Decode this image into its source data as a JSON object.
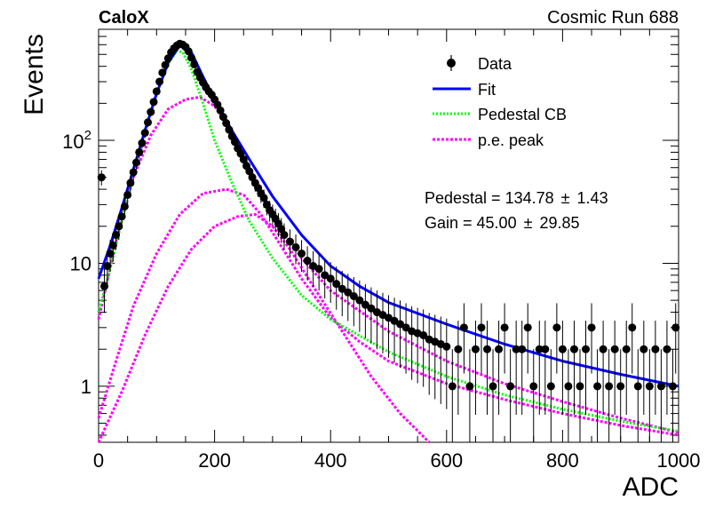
{
  "header": {
    "experiment": "CaloX",
    "run_label": "Cosmic Run 688"
  },
  "chart_data": {
    "type": "scatter",
    "xlabel": "ADC",
    "ylabel": "Events",
    "xlim": [
      0,
      1000
    ],
    "ylim": [
      0.35,
      800
    ],
    "y_scale": "log",
    "x_ticks": [
      0,
      200,
      400,
      600,
      800,
      1000
    ],
    "x_tick_labels": [
      "0",
      "200",
      "400",
      "600",
      "800",
      "1000"
    ],
    "y_ticks": [
      1,
      10,
      100
    ],
    "y_tick_labels": [
      "1",
      "10",
      "10^2"
    ],
    "grid": false,
    "legend_position": "top-right",
    "legend": [
      {
        "label": "Data",
        "kind": "marker",
        "color": "#000000"
      },
      {
        "label": "Fit",
        "kind": "line",
        "color": "#0000ff"
      },
      {
        "label": "Pedestal CB",
        "kind": "dotted",
        "color": "#00ff00"
      },
      {
        "label": "p.e. peak",
        "kind": "dotted",
        "color": "#ff00ff"
      }
    ],
    "fit_results": [
      {
        "label": "Pedestal = 134.78",
        "pm": "±",
        "error": "1.43"
      },
      {
        "label": "Gain = 45.00",
        "pm": "±",
        "error": "29.85"
      }
    ],
    "data_points": [
      {
        "x": 5,
        "y": 50
      },
      {
        "x": 10,
        "y": 6.5
      },
      {
        "x": 15,
        "y": 9.5
      },
      {
        "x": 20,
        "y": 12
      },
      {
        "x": 25,
        "y": 14
      },
      {
        "x": 30,
        "y": 17
      },
      {
        "x": 35,
        "y": 20
      },
      {
        "x": 40,
        "y": 24
      },
      {
        "x": 45,
        "y": 29
      },
      {
        "x": 50,
        "y": 36
      },
      {
        "x": 55,
        "y": 45
      },
      {
        "x": 60,
        "y": 55
      },
      {
        "x": 65,
        "y": 66
      },
      {
        "x": 70,
        "y": 80
      },
      {
        "x": 75,
        "y": 95
      },
      {
        "x": 80,
        "y": 115
      },
      {
        "x": 85,
        "y": 140
      },
      {
        "x": 90,
        "y": 170
      },
      {
        "x": 95,
        "y": 205
      },
      {
        "x": 100,
        "y": 250
      },
      {
        "x": 105,
        "y": 300
      },
      {
        "x": 110,
        "y": 355
      },
      {
        "x": 115,
        "y": 410
      },
      {
        "x": 120,
        "y": 465
      },
      {
        "x": 125,
        "y": 520
      },
      {
        "x": 130,
        "y": 560
      },
      {
        "x": 135,
        "y": 590
      },
      {
        "x": 140,
        "y": 610
      },
      {
        "x": 145,
        "y": 600
      },
      {
        "x": 150,
        "y": 575
      },
      {
        "x": 155,
        "y": 530
      },
      {
        "x": 160,
        "y": 470
      },
      {
        "x": 165,
        "y": 415
      },
      {
        "x": 170,
        "y": 360
      },
      {
        "x": 175,
        "y": 325
      },
      {
        "x": 180,
        "y": 295
      },
      {
        "x": 185,
        "y": 270
      },
      {
        "x": 190,
        "y": 250
      },
      {
        "x": 195,
        "y": 235
      },
      {
        "x": 200,
        "y": 215
      },
      {
        "x": 205,
        "y": 195
      },
      {
        "x": 210,
        "y": 175
      },
      {
        "x": 215,
        "y": 155
      },
      {
        "x": 220,
        "y": 138
      },
      {
        "x": 225,
        "y": 122
      },
      {
        "x": 230,
        "y": 108
      },
      {
        "x": 235,
        "y": 97
      },
      {
        "x": 240,
        "y": 86
      },
      {
        "x": 245,
        "y": 78
      },
      {
        "x": 250,
        "y": 70
      },
      {
        "x": 255,
        "y": 62
      },
      {
        "x": 260,
        "y": 56
      },
      {
        "x": 265,
        "y": 50
      },
      {
        "x": 270,
        "y": 45
      },
      {
        "x": 275,
        "y": 41
      },
      {
        "x": 280,
        "y": 37
      },
      {
        "x": 285,
        "y": 34
      },
      {
        "x": 290,
        "y": 30
      },
      {
        "x": 295,
        "y": 27
      },
      {
        "x": 300,
        "y": 25
      },
      {
        "x": 305,
        "y": 23
      },
      {
        "x": 310,
        "y": 21
      },
      {
        "x": 315,
        "y": 19
      },
      {
        "x": 320,
        "y": 17
      },
      {
        "x": 330,
        "y": 15
      },
      {
        "x": 340,
        "y": 13.5
      },
      {
        "x": 350,
        "y": 12
      },
      {
        "x": 360,
        "y": 10.5
      },
      {
        "x": 370,
        "y": 9.5
      },
      {
        "x": 380,
        "y": 9
      },
      {
        "x": 390,
        "y": 8
      },
      {
        "x": 400,
        "y": 7.5
      },
      {
        "x": 410,
        "y": 6.8
      },
      {
        "x": 420,
        "y": 6.2
      },
      {
        "x": 430,
        "y": 5.8
      },
      {
        "x": 440,
        "y": 5.4
      },
      {
        "x": 450,
        "y": 5
      },
      {
        "x": 460,
        "y": 4.6
      },
      {
        "x": 470,
        "y": 4.3
      },
      {
        "x": 480,
        "y": 4
      },
      {
        "x": 490,
        "y": 3.8
      },
      {
        "x": 500,
        "y": 3.6
      },
      {
        "x": 510,
        "y": 3.4
      },
      {
        "x": 520,
        "y": 3.2
      },
      {
        "x": 530,
        "y": 3
      },
      {
        "x": 540,
        "y": 2.8
      },
      {
        "x": 550,
        "y": 2.7
      },
      {
        "x": 560,
        "y": 2.6
      },
      {
        "x": 570,
        "y": 2.4
      },
      {
        "x": 580,
        "y": 2.3
      },
      {
        "x": 590,
        "y": 2.2
      },
      {
        "x": 600,
        "y": 2.1
      },
      {
        "x": 610,
        "y": 1
      },
      {
        "x": 620,
        "y": 2
      },
      {
        "x": 630,
        "y": 3
      },
      {
        "x": 640,
        "y": 1
      },
      {
        "x": 650,
        "y": 2
      },
      {
        "x": 660,
        "y": 3
      },
      {
        "x": 670,
        "y": 2
      },
      {
        "x": 680,
        "y": 1
      },
      {
        "x": 690,
        "y": 2
      },
      {
        "x": 700,
        "y": 3
      },
      {
        "x": 710,
        "y": 1
      },
      {
        "x": 720,
        "y": 2
      },
      {
        "x": 730,
        "y": 2
      },
      {
        "x": 740,
        "y": 3
      },
      {
        "x": 750,
        "y": 1
      },
      {
        "x": 760,
        "y": 2
      },
      {
        "x": 770,
        "y": 2
      },
      {
        "x": 780,
        "y": 1
      },
      {
        "x": 790,
        "y": 3
      },
      {
        "x": 800,
        "y": 2
      },
      {
        "x": 810,
        "y": 1
      },
      {
        "x": 820,
        "y": 2
      },
      {
        "x": 830,
        "y": 1
      },
      {
        "x": 840,
        "y": 2
      },
      {
        "x": 850,
        "y": 3
      },
      {
        "x": 860,
        "y": 1
      },
      {
        "x": 870,
        "y": 2
      },
      {
        "x": 880,
        "y": 1
      },
      {
        "x": 890,
        "y": 2
      },
      {
        "x": 900,
        "y": 1
      },
      {
        "x": 910,
        "y": 2
      },
      {
        "x": 920,
        "y": 3
      },
      {
        "x": 930,
        "y": 1
      },
      {
        "x": 940,
        "y": 2
      },
      {
        "x": 950,
        "y": 1
      },
      {
        "x": 960,
        "y": 2
      },
      {
        "x": 970,
        "y": 1
      },
      {
        "x": 980,
        "y": 2
      },
      {
        "x": 990,
        "y": 1
      },
      {
        "x": 995,
        "y": 3
      }
    ],
    "fit_curve": [
      {
        "x": 0,
        "y": 7.5
      },
      {
        "x": 20,
        "y": 14
      },
      {
        "x": 40,
        "y": 28
      },
      {
        "x": 60,
        "y": 58
      },
      {
        "x": 80,
        "y": 120
      },
      {
        "x": 100,
        "y": 240
      },
      {
        "x": 120,
        "y": 430
      },
      {
        "x": 140,
        "y": 590
      },
      {
        "x": 150,
        "y": 600
      },
      {
        "x": 160,
        "y": 520
      },
      {
        "x": 180,
        "y": 330
      },
      {
        "x": 200,
        "y": 215
      },
      {
        "x": 230,
        "y": 120
      },
      {
        "x": 260,
        "y": 70
      },
      {
        "x": 300,
        "y": 35
      },
      {
        "x": 350,
        "y": 17
      },
      {
        "x": 400,
        "y": 9.5
      },
      {
        "x": 450,
        "y": 6.5
      },
      {
        "x": 500,
        "y": 4.8
      },
      {
        "x": 600,
        "y": 3.2
      },
      {
        "x": 700,
        "y": 2.2
      },
      {
        "x": 800,
        "y": 1.6
      },
      {
        "x": 900,
        "y": 1.25
      },
      {
        "x": 1000,
        "y": 1.0
      }
    ],
    "pedestal_curve": [
      {
        "x": 0,
        "y": 4
      },
      {
        "x": 20,
        "y": 9
      },
      {
        "x": 40,
        "y": 22
      },
      {
        "x": 60,
        "y": 55
      },
      {
        "x": 80,
        "y": 120
      },
      {
        "x": 100,
        "y": 240
      },
      {
        "x": 120,
        "y": 420
      },
      {
        "x": 135,
        "y": 540
      },
      {
        "x": 145,
        "y": 520
      },
      {
        "x": 160,
        "y": 380
      },
      {
        "x": 180,
        "y": 200
      },
      {
        "x": 200,
        "y": 100
      },
      {
        "x": 230,
        "y": 45
      },
      {
        "x": 260,
        "y": 22
      },
      {
        "x": 300,
        "y": 11
      },
      {
        "x": 350,
        "y": 5.5
      },
      {
        "x": 400,
        "y": 3.5
      },
      {
        "x": 500,
        "y": 1.9
      },
      {
        "x": 600,
        "y": 1.2
      },
      {
        "x": 700,
        "y": 0.85
      },
      {
        "x": 800,
        "y": 0.65
      },
      {
        "x": 900,
        "y": 0.52
      },
      {
        "x": 1000,
        "y": 0.43
      }
    ],
    "pe_curves": [
      [
        {
          "x": 0,
          "y": 3.5
        },
        {
          "x": 30,
          "y": 15
        },
        {
          "x": 60,
          "y": 50
        },
        {
          "x": 90,
          "y": 110
        },
        {
          "x": 120,
          "y": 180
        },
        {
          "x": 150,
          "y": 215
        },
        {
          "x": 175,
          "y": 225
        },
        {
          "x": 200,
          "y": 190
        },
        {
          "x": 230,
          "y": 120
        },
        {
          "x": 260,
          "y": 60
        },
        {
          "x": 300,
          "y": 25
        },
        {
          "x": 350,
          "y": 11
        },
        {
          "x": 400,
          "y": 6
        },
        {
          "x": 500,
          "y": 2.8
        },
        {
          "x": 600,
          "y": 1.6
        },
        {
          "x": 700,
          "y": 1.05
        },
        {
          "x": 800,
          "y": 0.75
        },
        {
          "x": 900,
          "y": 0.55
        },
        {
          "x": 1000,
          "y": 0.42
        }
      ],
      [
        {
          "x": 0,
          "y": 0.55
        },
        {
          "x": 30,
          "y": 1.6
        },
        {
          "x": 60,
          "y": 4.5
        },
        {
          "x": 100,
          "y": 12
        },
        {
          "x": 140,
          "y": 25
        },
        {
          "x": 180,
          "y": 37
        },
        {
          "x": 220,
          "y": 40
        },
        {
          "x": 250,
          "y": 36
        },
        {
          "x": 280,
          "y": 25
        },
        {
          "x": 310,
          "y": 15
        },
        {
          "x": 350,
          "y": 7.5
        },
        {
          "x": 400,
          "y": 3.6
        },
        {
          "x": 450,
          "y": 2.3
        },
        {
          "x": 500,
          "y": 1.6
        },
        {
          "x": 600,
          "y": 1.05
        },
        {
          "x": 700,
          "y": 0.78
        },
        {
          "x": 800,
          "y": 0.6
        },
        {
          "x": 900,
          "y": 0.48
        },
        {
          "x": 1000,
          "y": 0.4
        }
      ],
      [
        {
          "x": 0,
          "y": 0.3
        },
        {
          "x": 40,
          "y": 0.9
        },
        {
          "x": 80,
          "y": 2.6
        },
        {
          "x": 120,
          "y": 6.5
        },
        {
          "x": 160,
          "y": 13
        },
        {
          "x": 200,
          "y": 20
        },
        {
          "x": 240,
          "y": 24
        },
        {
          "x": 270,
          "y": 25
        },
        {
          "x": 300,
          "y": 20
        },
        {
          "x": 330,
          "y": 13
        },
        {
          "x": 370,
          "y": 6.5
        },
        {
          "x": 420,
          "y": 2.8
        },
        {
          "x": 470,
          "y": 1.2
        },
        {
          "x": 520,
          "y": 0.6
        },
        {
          "x": 570,
          "y": 0.34
        }
      ]
    ]
  }
}
